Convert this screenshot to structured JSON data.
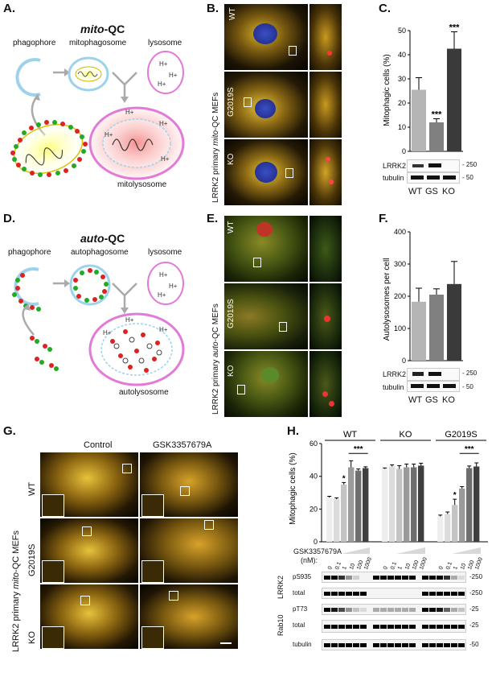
{
  "panels": {
    "A": "A.",
    "B": "B.",
    "C": "C.",
    "D": "D.",
    "E": "E.",
    "F": "F.",
    "G": "G.",
    "H": "H."
  },
  "panelA": {
    "title_em": "mito",
    "title_rest": "-QC",
    "labels": [
      "phagophore",
      "mitophagosome",
      "lysosome",
      "mitolysosome"
    ],
    "proton": "H+"
  },
  "panelD": {
    "title_em": "auto",
    "title_rest": "-QC",
    "labels": [
      "phagophore",
      "autophagosome",
      "lysosome",
      "autolysosome"
    ],
    "proton": "H+"
  },
  "panelB": {
    "side_label_pre": "LRRK2 primary ",
    "side_label_em": "mito",
    "side_label_post": "-QC MEFs",
    "rows": [
      "WT",
      "G2019S",
      "KO"
    ]
  },
  "panelE": {
    "side_label_pre": "LRRK2 primary ",
    "side_label_em": "auto",
    "side_label_post": "-QC MEFs",
    "rows": [
      "WT",
      "G2019S",
      "KO"
    ]
  },
  "panelG": {
    "side_label_pre": "LRRK2 primary ",
    "side_label_em": "mito",
    "side_label_post": "-QC MEFs",
    "cols": [
      "Control",
      "GSK3357679A"
    ],
    "rows": [
      "WT",
      "G2019S",
      "KO"
    ]
  },
  "chartC": {
    "ylabel": "Mitophagic cells (%)",
    "ticks": [
      "0",
      "10",
      "20",
      "30",
      "40",
      "50"
    ],
    "blot_labels": [
      "LRRK2",
      "tubulin"
    ],
    "blot_mw": [
      "- 250",
      "- 50"
    ],
    "sig": [
      "***",
      "***"
    ]
  },
  "chartF": {
    "ylabel": "Autolysosomes per cell",
    "ticks": [
      "0",
      "100",
      "200",
      "300",
      "400"
    ],
    "blot_labels": [
      "LRRK2",
      "tubulin"
    ],
    "blot_mw": [
      "- 250",
      "- 50"
    ]
  },
  "chartH": {
    "ylabel": "Mitophagic cells (%)",
    "ticks": [
      "0",
      "20",
      "40",
      "60"
    ],
    "groups": [
      "WT",
      "KO",
      "G2019S"
    ],
    "sig": [
      "*",
      "***",
      "*",
      "***"
    ],
    "drug_label": "GSK3357679A",
    "drug_unit": "(nM):",
    "doses": [
      "0",
      "0.1",
      "1",
      "10",
      "100",
      "1000"
    ],
    "blot_labels": [
      "pS935",
      "total",
      "pT73",
      "total",
      "tubulin"
    ],
    "blot_group_labels": [
      "LRRK2",
      "Rab10"
    ],
    "blot_mw": [
      "-250",
      "-250",
      "-25",
      "-25",
      "-50"
    ]
  },
  "chart_data": [
    {
      "type": "bar",
      "panel": "C",
      "categories": [
        "WT",
        "GS",
        "KO"
      ],
      "values": [
        25.5,
        12,
        42.5
      ],
      "errors": [
        5,
        1.5,
        7
      ],
      "ylabel": "Mitophagic cells (%)",
      "ylim": [
        0,
        50
      ],
      "colors": [
        "#b5b5b5",
        "#808080",
        "#3a3a3a"
      ]
    },
    {
      "type": "bar",
      "panel": "F",
      "categories": [
        "WT",
        "GS",
        "KO"
      ],
      "values": [
        183,
        205,
        238
      ],
      "errors": [
        42,
        18,
        70
      ],
      "ylabel": "Autolysosomes per cell",
      "ylim": [
        0,
        400
      ],
      "colors": [
        "#b5b5b5",
        "#808080",
        "#3a3a3a"
      ]
    },
    {
      "type": "bar",
      "panel": "H",
      "groups": [
        "WT",
        "KO",
        "G2019S"
      ],
      "doses": [
        "0",
        "0.1",
        "1",
        "10",
        "100",
        "1000"
      ],
      "series": [
        {
          "name": "WT",
          "values": [
            27,
            26,
            35,
            45.5,
            43.5,
            45
          ],
          "errors": [
            0.8,
            0.8,
            1.2,
            4,
            1,
            0.8
          ]
        },
        {
          "name": "KO",
          "values": [
            44.5,
            46,
            44.5,
            45.5,
            45.5,
            46.5
          ],
          "errors": [
            0.6,
            1,
            2,
            2,
            2,
            1.5
          ]
        },
        {
          "name": "G2019S",
          "values": [
            15.5,
            17,
            22.5,
            32.5,
            45,
            46
          ],
          "errors": [
            0.8,
            1.2,
            3.5,
            1.2,
            1.3,
            2.2
          ]
        }
      ],
      "ylabel": "Mitophagic cells (%)",
      "ylim": [
        0,
        60
      ],
      "colors": [
        "#eeeeee",
        "#dcdcdc",
        "#c4c4c4",
        "#9a9a9a",
        "#6e6e6e",
        "#3f3f3f"
      ]
    }
  ]
}
